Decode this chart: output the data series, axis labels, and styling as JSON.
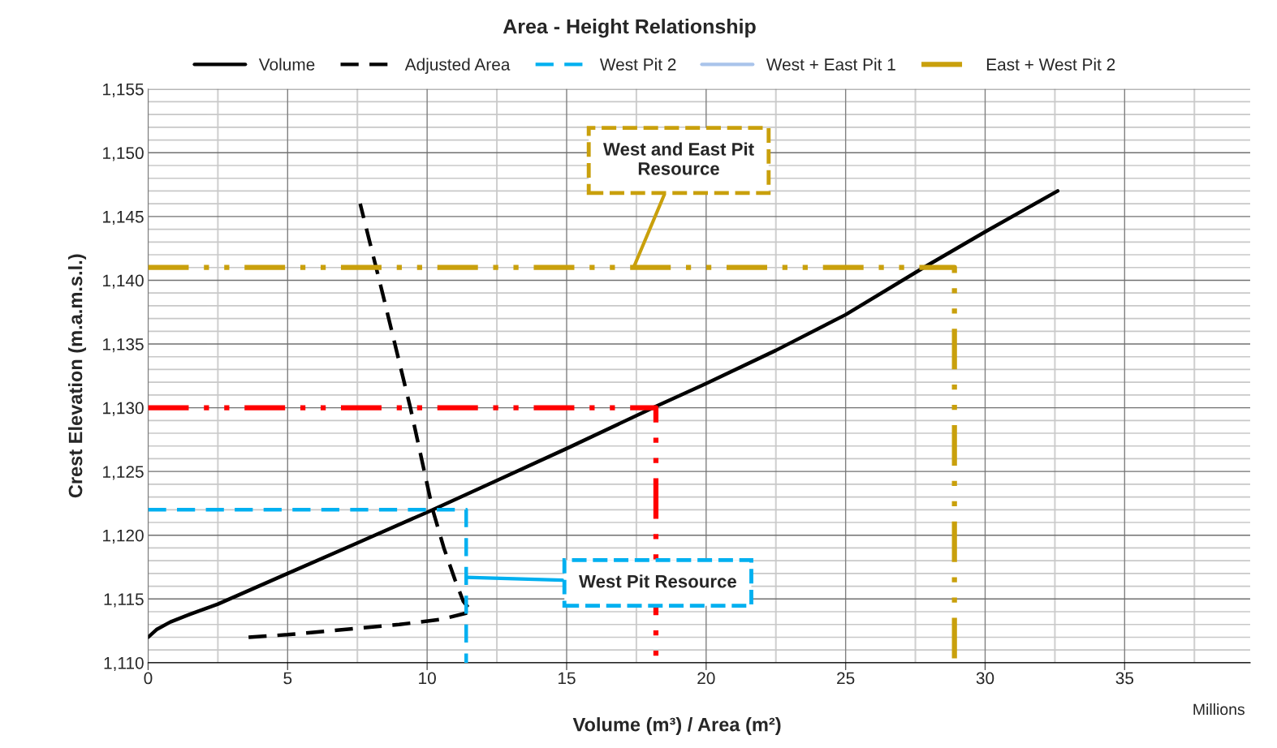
{
  "chart_data": {
    "type": "line",
    "title": "Area - Height Relationship",
    "xlabel": "Volume (m³) / Area (m²)",
    "ylabel": "Crest Elevation (m.a.m.s.l.)",
    "series": [
      {
        "name": "Volume",
        "color": "#000000",
        "line_style": "solid",
        "x": [
          0,
          0.3,
          0.8,
          1.5,
          2.5,
          5,
          7.5,
          10,
          12.5,
          15,
          18.1,
          20,
          22.5,
          25,
          27.8,
          30,
          32.6
        ],
        "values": [
          1112,
          1112.6,
          1113.2,
          1113.8,
          1114.6,
          1117,
          1119.4,
          1121.8,
          1124.3,
          1126.8,
          1130,
          1131.9,
          1134.5,
          1137.3,
          1141,
          1143.8,
          1147
        ]
      },
      {
        "name": "Adjusted Area",
        "color": "#000000",
        "line_style": "dashed",
        "x": [
          3.6,
          5,
          7.5,
          9,
          10.5,
          11.6,
          11.3,
          11.0,
          10.6,
          10.2,
          9.8,
          9.4,
          8.9,
          8.4,
          8.0,
          7.6
        ],
        "values": [
          1112,
          1112.2,
          1112.7,
          1113,
          1113.4,
          1114,
          1114.8,
          1116.5,
          1119,
          1122,
          1126,
          1130,
          1134.5,
          1139,
          1142.5,
          1146
        ]
      },
      {
        "name": "West Pit 2",
        "color": "#00b0f0",
        "line_style": "dashed",
        "x": [
          0,
          11.4,
          11.4
        ],
        "values": [
          1122,
          1122,
          1110
        ]
      },
      {
        "name": "West + East Pit 1",
        "color": "#a9c4eb",
        "line_style": "solid"
      },
      {
        "name": "East + West Pit 2",
        "color": "#c9a00c",
        "line_style": "dashdot",
        "x": [
          0,
          28.9,
          28.9
        ],
        "values": [
          1141,
          1141,
          1110
        ]
      },
      {
        "color": "#ff0000",
        "line_style": "dashdot",
        "x": [
          0,
          18.2,
          18.2
        ],
        "values": [
          1130,
          1130,
          1110
        ]
      }
    ],
    "annotations": [
      {
        "text": "West and East Pit\nResource",
        "x": 17.4,
        "y": 1141
      },
      {
        "text": "West Pit Resource",
        "x": 11.4,
        "y": 1116.7
      },
      "Millions"
    ],
    "xlim": [
      0,
      39.5
    ],
    "xticks": [
      0,
      {
        "value": 2.5,
        "label": null
      },
      5,
      {
        "value": 7.5,
        "label": null
      },
      10,
      {
        "value": 12.5,
        "label": null
      },
      15,
      {
        "value": 17.5,
        "label": null
      },
      20,
      {
        "value": 22.5,
        "label": null
      },
      25,
      {
        "value": 27.5,
        "label": null
      },
      30,
      {
        "value": 32.5,
        "label": null
      },
      35,
      {
        "value": 37.5,
        "label": null
      }
    ],
    "ylim": [
      1110,
      1155
    ],
    "yticks": [
      {
        "value": 1110,
        "label": "1,110"
      },
      {
        "value": 1111,
        "label": null
      },
      {
        "value": 1112,
        "label": null
      },
      {
        "value": 1113,
        "label": null
      },
      {
        "value": 1114,
        "label": null
      },
      {
        "value": 1115,
        "label": "1,115"
      },
      {
        "value": 1116,
        "label": null
      },
      {
        "value": 1117,
        "label": null
      },
      {
        "value": 1118,
        "label": null
      },
      {
        "value": 1119,
        "label": null
      },
      {
        "value": 1120,
        "label": "1,120"
      },
      {
        "value": 1121,
        "label": null
      },
      {
        "value": 1122,
        "label": null
      },
      {
        "value": 1123,
        "label": null
      },
      {
        "value": 1124,
        "label": null
      },
      {
        "value": 1125,
        "label": "1,125"
      },
      {
        "value": 1126,
        "label": null
      },
      {
        "value": 1127,
        "label": null
      },
      {
        "value": 1128,
        "label": null
      },
      {
        "value": 1129,
        "label": null
      },
      {
        "value": 1130,
        "label": "1,130"
      },
      {
        "value": 1131,
        "label": null
      },
      {
        "value": 1132,
        "label": null
      },
      {
        "value": 1133,
        "label": null
      },
      {
        "value": 1134,
        "label": null
      },
      {
        "value": 1135,
        "label": "1,135"
      },
      {
        "value": 1136,
        "label": null
      },
      {
        "value": 1137,
        "label": null
      },
      {
        "value": 1138,
        "label": null
      },
      {
        "value": 1139,
        "label": null
      },
      {
        "value": 1140,
        "label": "1,140"
      },
      {
        "value": 1141,
        "label": null
      },
      {
        "value": 1142,
        "label": null
      },
      {
        "value": 1143,
        "label": null
      },
      {
        "value": 1144,
        "label": null
      },
      {
        "value": 1145,
        "label": "1,145"
      },
      {
        "value": 1146,
        "label": null
      },
      {
        "value": 1147,
        "label": null
      },
      {
        "value": 1148,
        "label": null
      },
      {
        "value": 1149,
        "label": null
      },
      {
        "value": 1150,
        "label": "1,150"
      },
      {
        "value": 1151,
        "label": null
      },
      {
        "value": 1152,
        "label": null
      },
      {
        "value": 1153,
        "label": null
      },
      {
        "value": 1154,
        "label": null
      },
      {
        "value": 1155,
        "label": "1,155"
      }
    ],
    "grid": true,
    "legend": "top",
    "marker": "none"
  }
}
